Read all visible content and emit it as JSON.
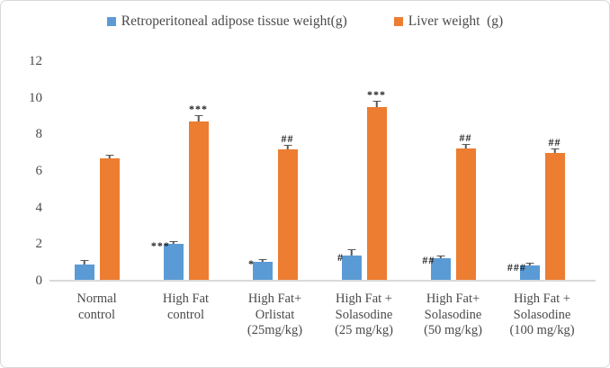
{
  "figure": {
    "background": "#ffffff",
    "border_color": "#d9d9d9",
    "text_color": "#4a4a4a"
  },
  "chart_data": {
    "type": "bar",
    "title": "",
    "xlabel": "",
    "ylabel": "",
    "categories": [
      "Normal\ncontrol",
      "High Fat\ncontrol",
      "High Fat+\nOrlistat\n(25mg/kg)",
      "High Fat +\nSolasodine\n(25 mg/kg)",
      "High Fat+\nSolasodine\n(50 mg/kg)",
      "High Fat +\nSolasodine\n(100 mg/kg)"
    ],
    "series": [
      {
        "name": "Retroperitoneal adipose tissue weight(g)",
        "color": "#5B9BD5",
        "values": [
          0.9,
          2.0,
          1.05,
          1.4,
          1.25,
          0.85
        ],
        "errors": [
          0.2,
          0.12,
          0.1,
          0.25,
          0.1,
          0.08
        ],
        "significance": [
          "",
          "***",
          "*",
          "#",
          "##",
          "###"
        ]
      },
      {
        "name": "Liver weight  (g)",
        "color": "#ED7D31",
        "values": [
          6.7,
          8.7,
          7.2,
          9.5,
          7.25,
          7.0
        ],
        "errors": [
          0.12,
          0.28,
          0.2,
          0.3,
          0.18,
          0.2
        ],
        "significance": [
          "",
          "***",
          "##",
          "***",
          "##",
          "##"
        ]
      }
    ],
    "ylim": [
      0,
      12
    ],
    "yticks": [
      0,
      2,
      4,
      6,
      8,
      10,
      12
    ],
    "legend_position": "top",
    "grid": false,
    "error_bars": true,
    "error_bar_color": "#595959"
  }
}
